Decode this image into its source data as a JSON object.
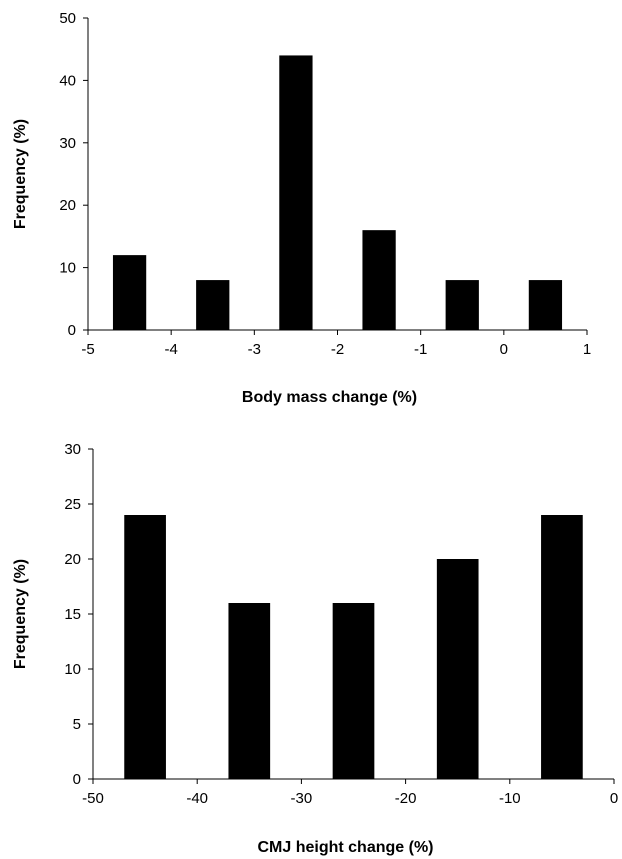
{
  "chart_data": [
    {
      "type": "bar",
      "title": "",
      "xlabel": "Body mass change (%)",
      "ylabel": "Frequency (%)",
      "xlim": [
        -5,
        1
      ],
      "ylim": [
        0,
        50
      ],
      "xticks": [
        -5,
        -4,
        -3,
        -2,
        -1,
        0,
        1
      ],
      "yticks": [
        0,
        10,
        20,
        30,
        40,
        50
      ],
      "bin_width": 1,
      "bin_starts": [
        -5,
        -4,
        -3,
        -2,
        -1,
        0
      ],
      "values": [
        12,
        8,
        44,
        16,
        8,
        8
      ],
      "grid": false,
      "legend": "none"
    },
    {
      "type": "bar",
      "title": "",
      "xlabel": "CMJ height change (%)",
      "ylabel": "Frequency (%)",
      "xlim": [
        -50,
        0
      ],
      "ylim": [
        0,
        30
      ],
      "xticks": [
        -50,
        -40,
        -30,
        -20,
        -10,
        0
      ],
      "yticks": [
        0,
        5,
        10,
        15,
        20,
        25,
        30
      ],
      "bin_width": 10,
      "bin_starts": [
        -50,
        -40,
        -30,
        -20,
        -10
      ],
      "values": [
        24,
        16,
        16,
        20,
        24
      ],
      "grid": false,
      "legend": "none"
    }
  ]
}
